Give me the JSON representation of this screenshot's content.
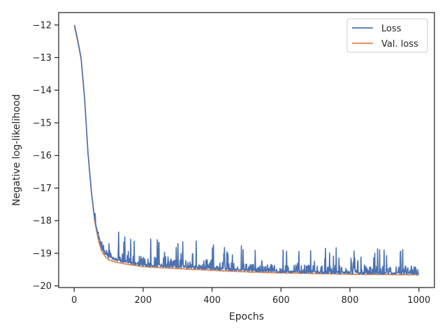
{
  "chart_data": {
    "type": "line",
    "xlabel": "Epochs",
    "ylabel": "Negative log-likelihood",
    "xlim": [
      -45,
      1045
    ],
    "ylim": [
      -20.05,
      -11.62
    ],
    "x_ticks": [
      0,
      200,
      400,
      600,
      800,
      1000
    ],
    "y_ticks": [
      -12,
      -13,
      -14,
      -15,
      -16,
      -17,
      -18,
      -19,
      -20
    ],
    "x_tick_labels": [
      "0",
      "200",
      "400",
      "600",
      "800",
      "1000"
    ],
    "y_tick_labels": [
      "−12",
      "−13",
      "−14",
      "−15",
      "−16",
      "−17",
      "−18",
      "−19",
      "−20"
    ],
    "legend_position": "upper right",
    "grid": false,
    "series": [
      {
        "name": "Loss",
        "color": "#4c72b0",
        "noisy": true,
        "points": [
          [
            1,
            -12.0
          ],
          [
            10,
            -12.45
          ],
          [
            20,
            -13.0
          ],
          [
            30,
            -14.2
          ],
          [
            40,
            -15.9
          ],
          [
            50,
            -17.1
          ],
          [
            60,
            -18.0
          ],
          [
            70,
            -18.55
          ],
          [
            80,
            -18.9
          ],
          [
            90,
            -19.05
          ],
          [
            100,
            -19.15
          ],
          [
            125,
            -19.25
          ],
          [
            150,
            -19.3
          ],
          [
            200,
            -19.4
          ],
          [
            300,
            -19.45
          ],
          [
            400,
            -19.5
          ],
          [
            500,
            -19.55
          ],
          [
            600,
            -19.6
          ],
          [
            700,
            -19.62
          ],
          [
            800,
            -19.64
          ],
          [
            900,
            -19.65
          ],
          [
            1000,
            -19.66
          ]
        ]
      },
      {
        "name": "Val. loss",
        "color": "#dd8452",
        "noisy": false,
        "points": [
          [
            1,
            -12.05
          ],
          [
            10,
            -12.5
          ],
          [
            20,
            -13.05
          ],
          [
            30,
            -14.25
          ],
          [
            40,
            -15.95
          ],
          [
            50,
            -17.15
          ],
          [
            60,
            -18.05
          ],
          [
            70,
            -18.6
          ],
          [
            80,
            -18.95
          ],
          [
            90,
            -19.1
          ],
          [
            100,
            -19.2
          ],
          [
            125,
            -19.28
          ],
          [
            150,
            -19.33
          ],
          [
            200,
            -19.41
          ],
          [
            300,
            -19.47
          ],
          [
            400,
            -19.52
          ],
          [
            500,
            -19.57
          ],
          [
            600,
            -19.6
          ],
          [
            700,
            -19.62
          ],
          [
            800,
            -19.64
          ],
          [
            900,
            -19.65
          ],
          [
            1000,
            -19.66
          ]
        ]
      }
    ]
  }
}
